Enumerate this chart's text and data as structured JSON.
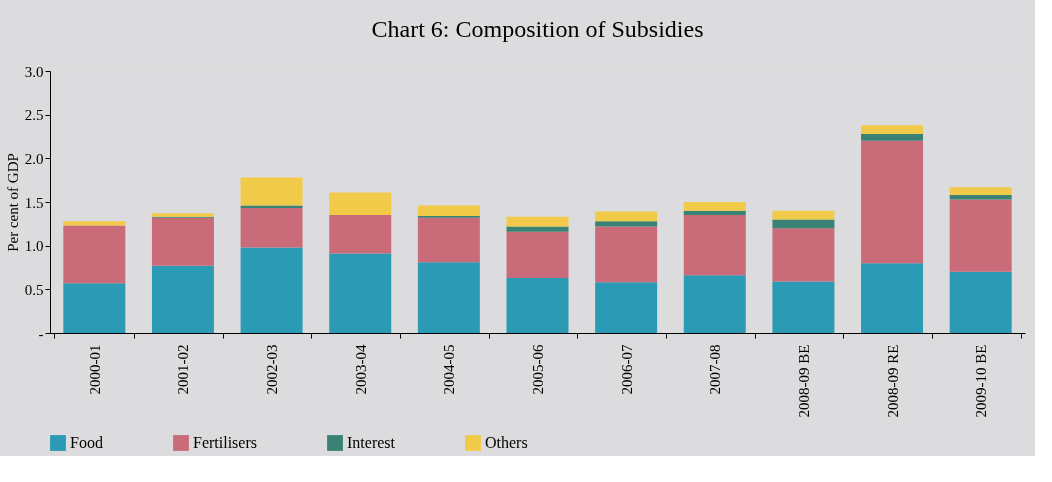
{
  "chart_data": {
    "type": "bar",
    "title": "Chart 6: Composition of Subsidies",
    "ylabel": "Per cent of GDP",
    "stacked": true,
    "legend": "bottom",
    "categories": [
      "2000-01",
      "2001-02",
      "2002-03",
      "2003-04",
      "2004-05",
      "2005-06",
      "2006-07",
      "2007-08",
      "2008-09 BE",
      "2008-09 RE",
      "2009-10 BE"
    ],
    "ylim": [
      0,
      3.0
    ],
    "yticks": [
      {
        "value": 0,
        "label": "-"
      },
      0.5,
      {
        "value": 1,
        "label": "1.0"
      },
      1.5,
      {
        "value": 2,
        "label": "2.0"
      },
      2.5,
      {
        "value": 3,
        "label": "3.0"
      }
    ],
    "series": [
      {
        "name": "Food",
        "color": "#2a9ab5",
        "values": [
          0.57,
          0.77,
          0.98,
          0.91,
          0.81,
          0.63,
          0.58,
          0.66,
          0.59,
          0.8,
          0.7
        ]
      },
      {
        "name": "Fertilisers",
        "color": "#c96b78",
        "values": [
          0.66,
          0.55,
          0.45,
          0.44,
          0.51,
          0.53,
          0.64,
          0.69,
          0.61,
          1.4,
          0.83
        ]
      },
      {
        "name": "Interest",
        "color": "#3a8273",
        "values": [
          0.0,
          0.01,
          0.03,
          0.0,
          0.02,
          0.06,
          0.06,
          0.05,
          0.1,
          0.08,
          0.05
        ]
      },
      {
        "name": "Others",
        "color": "#f2ca4a",
        "values": [
          0.05,
          0.04,
          0.32,
          0.26,
          0.12,
          0.11,
          0.11,
          0.1,
          0.1,
          0.1,
          0.09
        ]
      }
    ]
  }
}
